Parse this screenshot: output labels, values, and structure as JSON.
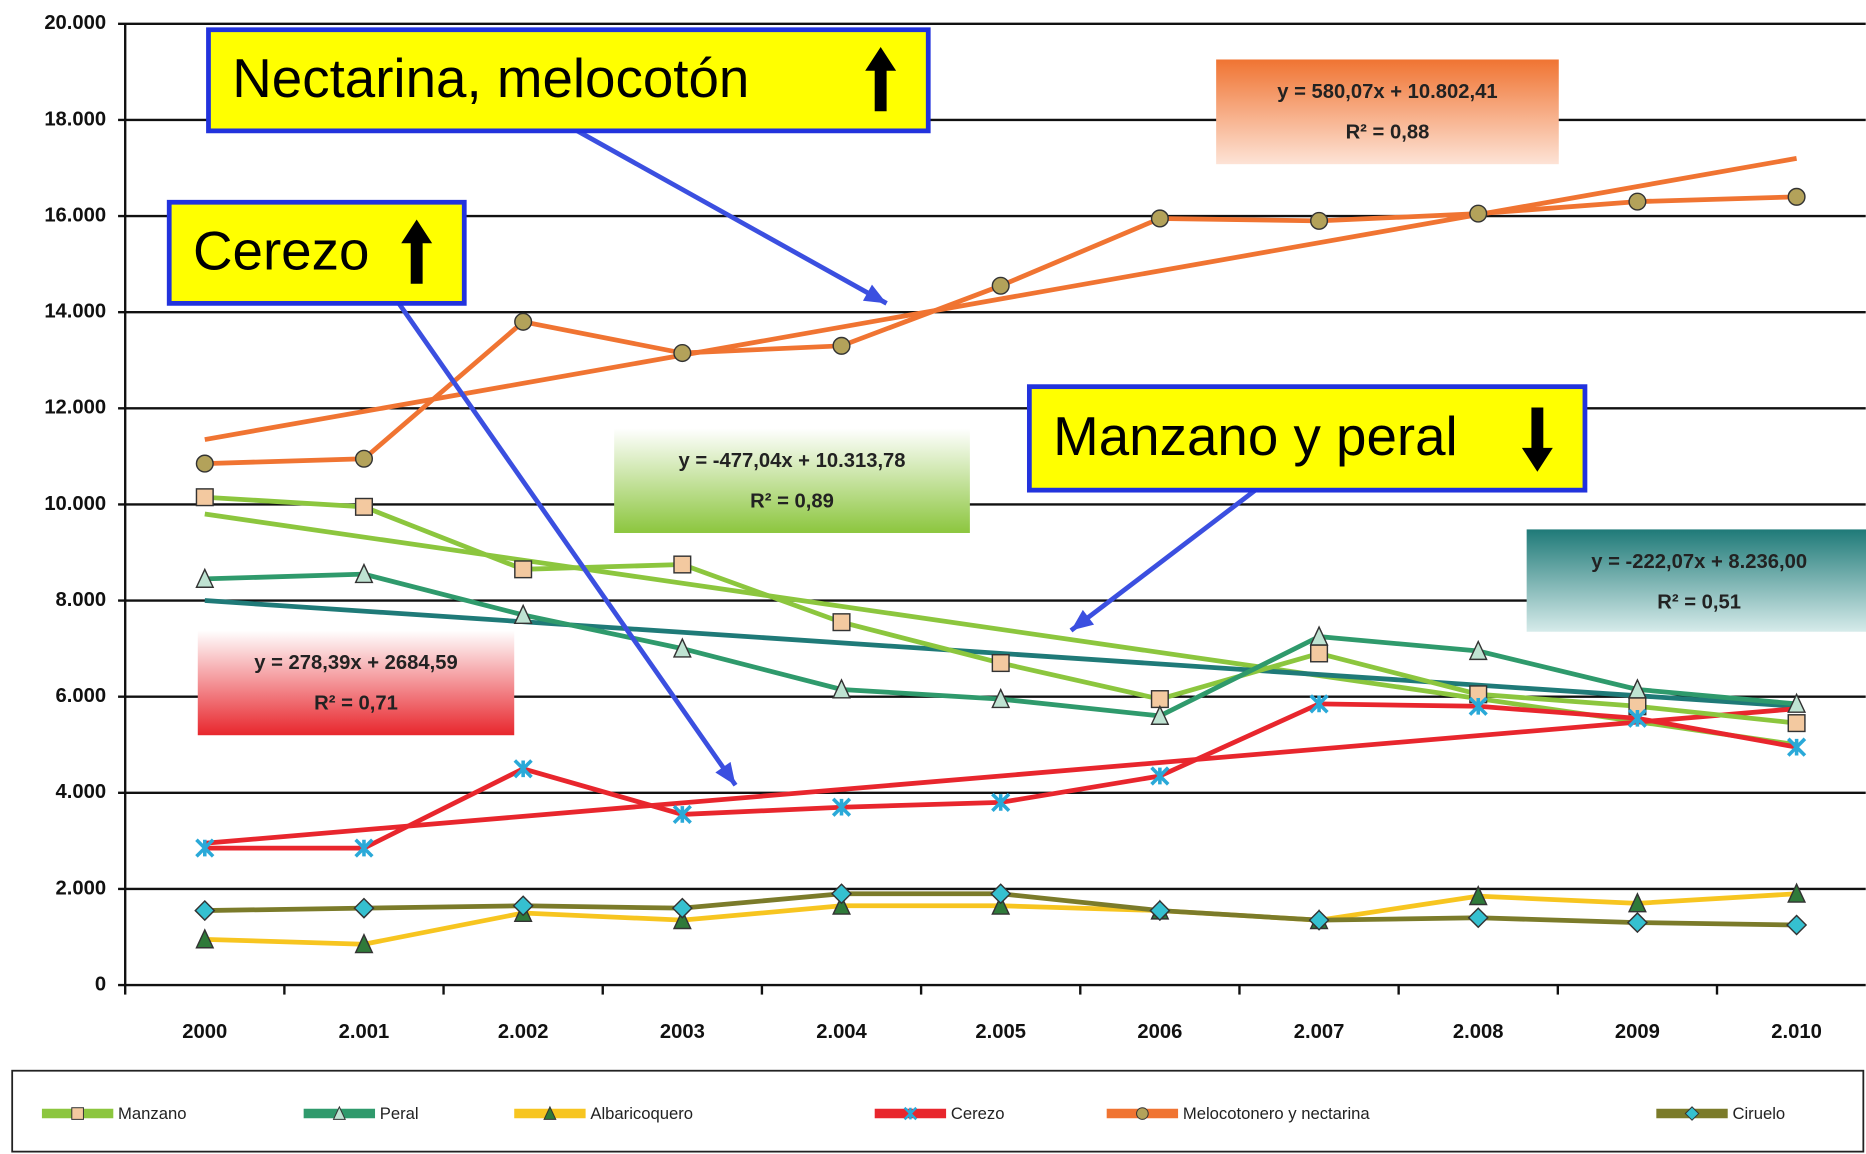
{
  "chart_data": {
    "type": "line",
    "categories": [
      "2000",
      "2.001",
      "2.002",
      "2003",
      "2.004",
      "2.005",
      "2006",
      "2.007",
      "2.008",
      "2009",
      "2.010"
    ],
    "ylim": [
      0,
      20000
    ],
    "yticks": [
      0,
      {
        "value": 2000,
        "label": "2.000"
      },
      {
        "value": 4000,
        "label": "4.000"
      },
      {
        "value": 6000,
        "label": "6.000"
      },
      {
        "value": 8000,
        "label": "8.000"
      },
      {
        "value": 10000,
        "label": "10.000"
      },
      {
        "value": 12000,
        "label": "12.000"
      },
      {
        "value": 14000,
        "label": "14.000"
      },
      {
        "value": 16000,
        "label": "16.000"
      },
      {
        "value": 18000,
        "label": "18.000"
      },
      {
        "value": 20000,
        "label": "20.000"
      }
    ],
    "grid": true,
    "series": [
      {
        "name": "Manzano",
        "color": "#8cc63e",
        "marker": "square",
        "values": [
          10150,
          9950,
          8650,
          8750,
          7550,
          6700,
          5950,
          6900,
          6050,
          5800,
          5450
        ]
      },
      {
        "name": "Peral",
        "color": "#2f9a6c",
        "marker": "triangle",
        "values": [
          8450,
          8550,
          7700,
          7000,
          6150,
          5950,
          5600,
          7250,
          6950,
          6150,
          5850
        ]
      },
      {
        "name": "Albaricoquero",
        "color": "#f7c520",
        "marker": "triangle",
        "values": [
          950,
          850,
          1500,
          1350,
          1650,
          1650,
          1550,
          1350,
          1850,
          1700,
          1900
        ]
      },
      {
        "name": "Cerezo",
        "color": "#e8262d",
        "marker": "x",
        "values": [
          2850,
          2850,
          4500,
          3550,
          3700,
          3800,
          4350,
          5850,
          5800,
          5550,
          4950
        ]
      },
      {
        "name": "Melocotonero y nectarina",
        "color": "#f07432",
        "marker": "circle",
        "values": [
          10850,
          10950,
          13800,
          13150,
          13300,
          14550,
          15950,
          15900,
          16050,
          16300,
          16400
        ]
      },
      {
        "name": "Ciruelo",
        "color": "#7b7b2a",
        "marker": "diamond",
        "values": [
          1550,
          1600,
          1650,
          1600,
          1900,
          1900,
          1550,
          1350,
          1400,
          1300,
          1250
        ]
      }
    ],
    "trendlines": [
      {
        "color": "#f07432",
        "values": [
          11350,
          17200
        ]
      },
      {
        "color": "#8cc63e",
        "values": [
          9800,
          5000
        ]
      },
      {
        "color": "#1f7a78",
        "values": [
          8000,
          5800
        ]
      },
      {
        "color": "#e8262d",
        "values": [
          2950,
          5750
        ]
      }
    ],
    "equations": [
      {
        "color": "#f07432",
        "lines": [
          "y = 580,07x + 10.802,41",
          "R² = 0,88"
        ]
      },
      {
        "color": "#8cc63e",
        "lines": [
          "y = -477,04x + 10.313,78",
          "R² = 0,89"
        ]
      },
      {
        "color": "#1f7a78",
        "lines": [
          "y = -222,07x + 8.236,00",
          "R² = 0,51"
        ]
      },
      {
        "color": "#e8262d",
        "lines": [
          "y = 278,39x + 2684,59",
          "R² = 0,71"
        ]
      }
    ],
    "callouts": [
      "Nectarina, melocotón",
      "Cerezo",
      "Manzano y peral"
    ]
  }
}
